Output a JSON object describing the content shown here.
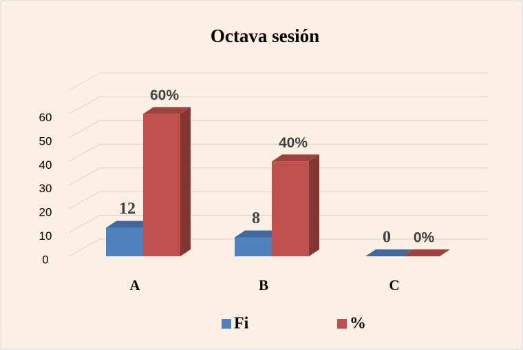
{
  "chart_data": {
    "type": "bar3d",
    "title": "Octava sesión",
    "categories": [
      "A",
      "B",
      "C"
    ],
    "series": [
      {
        "name": "Fi",
        "color": "#4f81bd",
        "values": [
          12,
          8,
          0
        ]
      },
      {
        "name": "%",
        "color": "#c0504d",
        "values": [
          60,
          40,
          0
        ],
        "value_labels": [
          "60%",
          "40%",
          "0%"
        ]
      }
    ],
    "ylim": [
      0,
      70
    ],
    "yticks": [
      0,
      10,
      20,
      30,
      40,
      50,
      60
    ],
    "grid": true,
    "legend": "bottom"
  }
}
